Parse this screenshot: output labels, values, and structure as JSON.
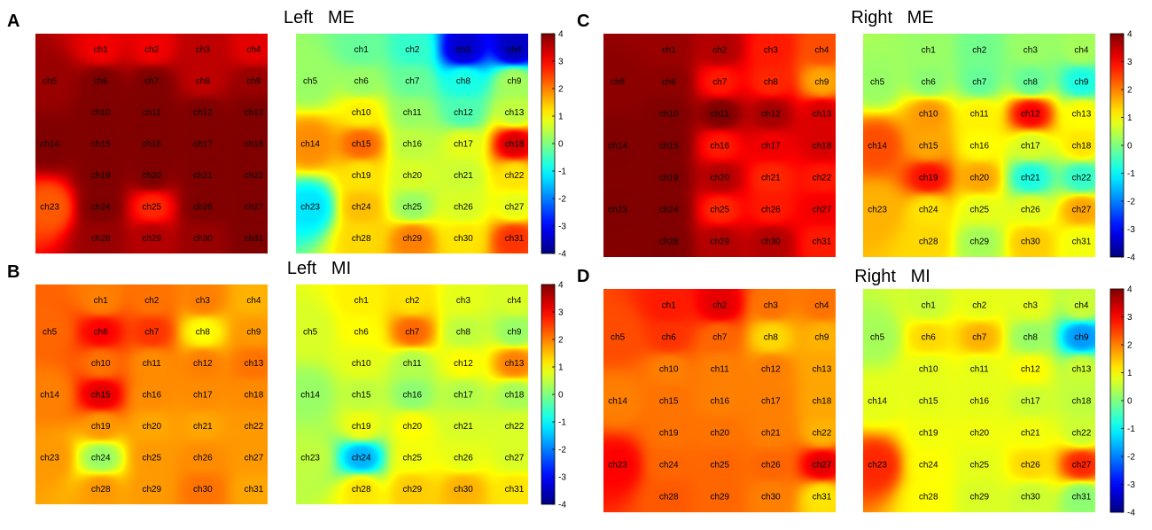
{
  "chart_data": {
    "type": "heatmap",
    "colormap": "jet",
    "colorbar": {
      "ticks": [
        4,
        3,
        2,
        1,
        0,
        -1,
        -2,
        -3,
        -4
      ],
      "range": [
        -4,
        4
      ]
    },
    "channels": [
      "ch1",
      "ch2",
      "ch3",
      "ch4",
      "ch5",
      "ch6",
      "ch7",
      "ch8",
      "ch9",
      "ch10",
      "ch11",
      "ch12",
      "ch13",
      "ch14",
      "ch15",
      "ch16",
      "ch17",
      "ch18",
      "ch19",
      "ch20",
      "ch21",
      "ch22",
      "ch23",
      "ch24",
      "ch25",
      "ch26",
      "ch27",
      "ch28",
      "ch29",
      "ch30",
      "ch31"
    ],
    "panels": [
      {
        "letter": "A",
        "title": "Left   ME",
        "maps": [
          {
            "values": [
              3.1,
              3.1,
              3.5,
              3.2,
              3.8,
              4,
              4,
              3.5,
              3.8,
              4,
              4,
              4,
              4,
              4,
              4,
              4,
              4,
              4,
              4,
              4,
              4,
              4,
              2.3,
              4,
              2.7,
              4,
              4,
              3.8,
              3.6,
              3.8,
              4
            ]
          },
          {
            "values": [
              -0.2,
              -0.6,
              -3.4,
              -3.5,
              0.2,
              0.2,
              -0.2,
              -0.8,
              0.3,
              1.1,
              0.2,
              -0.4,
              0.5,
              1.9,
              2.2,
              0.5,
              0.8,
              3.3,
              1.2,
              0.7,
              0.6,
              1.2,
              -1.2,
              1.5,
              0.2,
              0.7,
              0.8,
              1.3,
              2.0,
              1.2,
              2.6
            ]
          }
        ]
      },
      {
        "letter": "B",
        "title": "Left   MI",
        "maps": [
          {
            "values": [
              2.0,
              2.1,
              2.0,
              1.6,
              2.2,
              3.0,
              2.6,
              1.0,
              1.8,
              2.1,
              1.9,
              2.0,
              2.1,
              2.0,
              3.2,
              1.9,
              1.9,
              1.9,
              1.8,
              1.7,
              1.7,
              1.8,
              1.8,
              0.2,
              1.8,
              1.9,
              1.8,
              1.8,
              1.8,
              2.1,
              1.7
            ]
          },
          {
            "values": [
              1.1,
              1.2,
              0.8,
              0.7,
              0.7,
              1.0,
              2.2,
              0.5,
              0.2,
              0.8,
              0.4,
              1.0,
              2.0,
              0.2,
              0.5,
              0.1,
              0.4,
              0.3,
              0.9,
              1.0,
              0.7,
              0.7,
              0.5,
              -1.6,
              0.9,
              0.8,
              0.7,
              1.2,
              1.4,
              1.6,
              1.2
            ]
          }
        ]
      },
      {
        "letter": "C",
        "title": "Right   ME",
        "maps": [
          {
            "values": [
              3.8,
              3.6,
              2.8,
              2.4,
              3.9,
              3.9,
              2.8,
              2.7,
              1.7,
              4,
              4,
              3.7,
              3.3,
              4,
              4,
              2.8,
              3.1,
              3.3,
              4,
              3.6,
              2.7,
              2.8,
              4,
              4,
              2.7,
              2.8,
              3.1,
              4,
              3.6,
              3.6,
              2.8
            ]
          },
          {
            "values": [
              0.2,
              -0.1,
              0.2,
              0.3,
              0.2,
              0.1,
              -0.2,
              -0.2,
              -0.8,
              1.8,
              1.1,
              3.0,
              1.0,
              2.4,
              1.7,
              1.0,
              0.7,
              1.2,
              2.9,
              1.7,
              -0.8,
              -0.6,
              1.6,
              1.2,
              0.8,
              0.8,
              1.7,
              1.3,
              0.3,
              1.4,
              0.9
            ]
          }
        ]
      },
      {
        "letter": "D",
        "title": "Right   MI",
        "maps": [
          {
            "values": [
              2.8,
              3.2,
              2.1,
              2.1,
              2.4,
              2.6,
              2.2,
              1.3,
              1.6,
              2.0,
              2.0,
              2.0,
              1.7,
              2.0,
              2.1,
              2.0,
              2.0,
              1.7,
              2.1,
              2.1,
              2.0,
              1.6,
              3.0,
              2.2,
              2.2,
              2.2,
              3.2,
              2.3,
              2.2,
              2.0,
              1.2
            ]
          },
          {
            "values": [
              0.6,
              0.8,
              0.8,
              0.6,
              0.3,
              1.3,
              1.6,
              0.2,
              -1.8,
              0.8,
              0.8,
              1.0,
              0.6,
              0.8,
              0.8,
              0.8,
              0.6,
              0.5,
              0.9,
              0.9,
              0.9,
              0.6,
              2.7,
              1.0,
              0.8,
              1.3,
              2.7,
              1.0,
              0.7,
              0.6,
              0.1
            ]
          }
        ]
      }
    ]
  }
}
